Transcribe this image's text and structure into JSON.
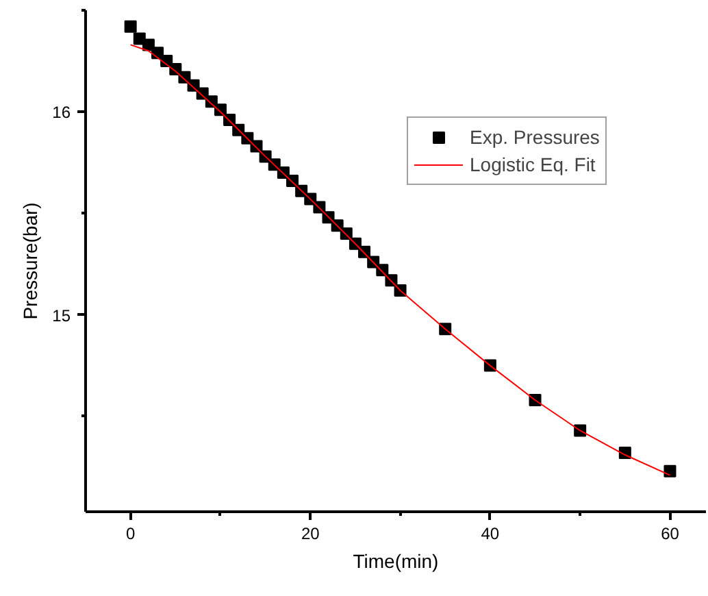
{
  "chart_data": {
    "type": "scatter",
    "xlabel": "Time(min)",
    "ylabel": "Pressure(bar)",
    "xlim": [
      -5,
      64
    ],
    "ylim": [
      14.03,
      16.5
    ],
    "xticks": [
      0,
      {
        "value": 10,
        "label": null
      },
      20,
      {
        "value": 30,
        "label": null
      },
      40,
      {
        "value": 50,
        "label": null
      },
      60
    ],
    "yticks": [
      {
        "value": 14.5,
        "label": null
      },
      15,
      {
        "value": 15.5,
        "label": null
      },
      16,
      {
        "value": 16.5,
        "label": null
      }
    ],
    "grid": false,
    "legend": "top right",
    "marker": "square",
    "series": [
      {
        "name": "Exp. Pressures",
        "color": "#000000",
        "x": [
          0,
          1,
          2,
          3,
          4,
          5,
          6,
          7,
          8,
          9,
          10,
          11,
          12,
          13,
          14,
          15,
          16,
          17,
          18,
          19,
          20,
          21,
          22,
          23,
          24,
          25,
          26,
          27,
          28,
          29,
          30,
          35,
          40,
          45,
          50,
          55,
          60
        ],
        "values": [
          16.42,
          16.36,
          16.33,
          16.29,
          16.25,
          16.21,
          16.17,
          16.13,
          16.09,
          16.05,
          16.01,
          15.96,
          15.91,
          15.87,
          15.83,
          15.78,
          15.74,
          15.7,
          15.66,
          15.61,
          15.57,
          15.53,
          15.48,
          15.44,
          15.4,
          15.35,
          15.31,
          15.26,
          15.22,
          15.17,
          15.12,
          14.93,
          14.75,
          14.58,
          14.43,
          14.32,
          14.23
        ]
      },
      {
        "name": "Logistic Eq. Fit",
        "type": "line",
        "color": "#ff0000",
        "marker": "none",
        "x": [
          0,
          2,
          5,
          10,
          15,
          20,
          25,
          30,
          35,
          40,
          45,
          50,
          55,
          60
        ],
        "values": [
          16.33,
          16.3,
          16.2,
          16.0,
          15.78,
          15.57,
          15.35,
          15.12,
          14.93,
          14.75,
          14.58,
          14.43,
          14.31,
          14.21
        ]
      }
    ]
  }
}
